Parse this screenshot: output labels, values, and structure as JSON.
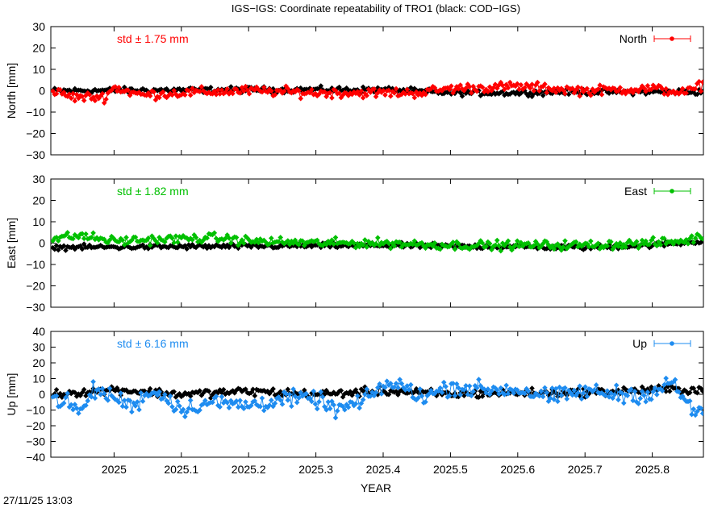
{
  "title": "IGS−IGS: Coordinate repeatability of TRO1 (black: COD−IGS)",
  "timestamp": "27/11/25 13:03",
  "chart_data": {
    "type": "line",
    "title": "IGS−IGS: Coordinate repeatability of TRO1 (black: COD−IGS)",
    "xlabel": "YEAR",
    "xlim": [
      2024.906,
      2025.876
    ],
    "xticks": [
      2025,
      2025.1,
      2025.2,
      2025.3,
      2025.4,
      2025.5,
      2025.6,
      2025.7,
      2025.8
    ],
    "xtick_labels": [
      "2025",
      "2025.1",
      "2025.2",
      "2025.3",
      "2025.4",
      "2025.5",
      "2025.6",
      "2025.7",
      "2025.8"
    ],
    "grid": false,
    "legend_position": "top-right",
    "panels": [
      {
        "name": "north",
        "ylabel": "North [mm]",
        "ylim": [
          -30,
          30
        ],
        "yticks": [
          -30,
          -20,
          -10,
          0,
          10,
          20,
          30
        ],
        "ytick_labels": [
          "−30",
          "−20",
          "−10",
          "0",
          "10",
          "20",
          "30"
        ],
        "legend": "North",
        "color": "#ff0000",
        "std_label": "std ± 1.75 mm",
        "igs_ctrl": [
          [
            2024.906,
            0
          ],
          [
            2024.94,
            -3
          ],
          [
            2024.985,
            -3
          ],
          [
            2025.0,
            1.5
          ],
          [
            2025.04,
            -2
          ],
          [
            2025.1,
            -1
          ],
          [
            2025.2,
            0
          ],
          [
            2025.3,
            -1
          ],
          [
            2025.45,
            -1
          ],
          [
            2025.5,
            1
          ],
          [
            2025.6,
            2
          ],
          [
            2025.7,
            0
          ],
          [
            2025.8,
            1
          ],
          [
            2025.85,
            -1
          ],
          [
            2025.876,
            3
          ]
        ],
        "igs_noise": 1.7,
        "cod_ctrl": [
          [
            2024.906,
            0
          ],
          [
            2025.2,
            0.5
          ],
          [
            2025.4,
            0.5
          ],
          [
            2025.5,
            -1
          ],
          [
            2025.6,
            -1
          ],
          [
            2025.7,
            -0.5
          ],
          [
            2025.876,
            -0.5
          ]
        ],
        "cod_noise": 1.0
      },
      {
        "name": "east",
        "ylabel": "East [mm]",
        "ylim": [
          -30,
          30
        ],
        "yticks": [
          -30,
          -20,
          -10,
          0,
          10,
          20,
          30
        ],
        "ytick_labels": [
          "−30",
          "−20",
          "−10",
          "0",
          "10",
          "20",
          "30"
        ],
        "legend": "East",
        "color": "#00c000",
        "std_label": "std ± 1.82 mm",
        "igs_ctrl": [
          [
            2024.906,
            2
          ],
          [
            2024.95,
            3.5
          ],
          [
            2025.0,
            1
          ],
          [
            2025.1,
            2
          ],
          [
            2025.15,
            2.5
          ],
          [
            2025.2,
            1
          ],
          [
            2025.3,
            0
          ],
          [
            2025.4,
            0
          ],
          [
            2025.5,
            -1
          ],
          [
            2025.6,
            -1
          ],
          [
            2025.7,
            -1
          ],
          [
            2025.8,
            0
          ],
          [
            2025.85,
            1
          ],
          [
            2025.876,
            3.5
          ]
        ],
        "igs_noise": 1.6,
        "cod_ctrl": [
          [
            2024.906,
            -2
          ],
          [
            2025.2,
            -1.5
          ],
          [
            2025.4,
            -1
          ],
          [
            2025.5,
            -1.5
          ],
          [
            2025.7,
            -2
          ],
          [
            2025.8,
            -1
          ],
          [
            2025.876,
            1
          ]
        ],
        "cod_noise": 0.9
      },
      {
        "name": "up",
        "ylabel": "Up [mm]",
        "ylim": [
          -40,
          40
        ],
        "yticks": [
          -40,
          -30,
          -20,
          -10,
          0,
          10,
          20,
          30,
          40
        ],
        "ytick_labels": [
          "−40",
          "−30",
          "−20",
          "−10",
          "0",
          "10",
          "20",
          "30",
          "40"
        ],
        "legend": "Up",
        "color": "#1e8cf0",
        "std_label": "std ± 6.16 mm",
        "igs_ctrl": [
          [
            2024.906,
            -2
          ],
          [
            2024.93,
            -5
          ],
          [
            2024.95,
            -12
          ],
          [
            2024.97,
            3
          ],
          [
            2025.0,
            -2
          ],
          [
            2025.03,
            -8
          ],
          [
            2025.05,
            2
          ],
          [
            2025.08,
            -2
          ],
          [
            2025.1,
            -10
          ],
          [
            2025.14,
            -5
          ],
          [
            2025.2,
            -7
          ],
          [
            2025.25,
            -3
          ],
          [
            2025.3,
            -3
          ],
          [
            2025.33,
            -10
          ],
          [
            2025.37,
            -5
          ],
          [
            2025.4,
            6
          ],
          [
            2025.43,
            5
          ],
          [
            2025.46,
            -2
          ],
          [
            2025.5,
            5
          ],
          [
            2025.55,
            3
          ],
          [
            2025.6,
            3
          ],
          [
            2025.65,
            -2
          ],
          [
            2025.7,
            2
          ],
          [
            2025.75,
            0
          ],
          [
            2025.8,
            0
          ],
          [
            2025.83,
            8
          ],
          [
            2025.85,
            -5
          ],
          [
            2025.876,
            -15
          ]
        ],
        "igs_noise": 4.0,
        "cod_ctrl": [
          [
            2024.906,
            0
          ],
          [
            2025.0,
            3
          ],
          [
            2025.1,
            0
          ],
          [
            2025.2,
            2
          ],
          [
            2025.3,
            0
          ],
          [
            2025.4,
            2
          ],
          [
            2025.5,
            0
          ],
          [
            2025.6,
            1
          ],
          [
            2025.7,
            1
          ],
          [
            2025.8,
            3
          ],
          [
            2025.876,
            3
          ]
        ],
        "cod_noise": 2.0
      }
    ]
  }
}
